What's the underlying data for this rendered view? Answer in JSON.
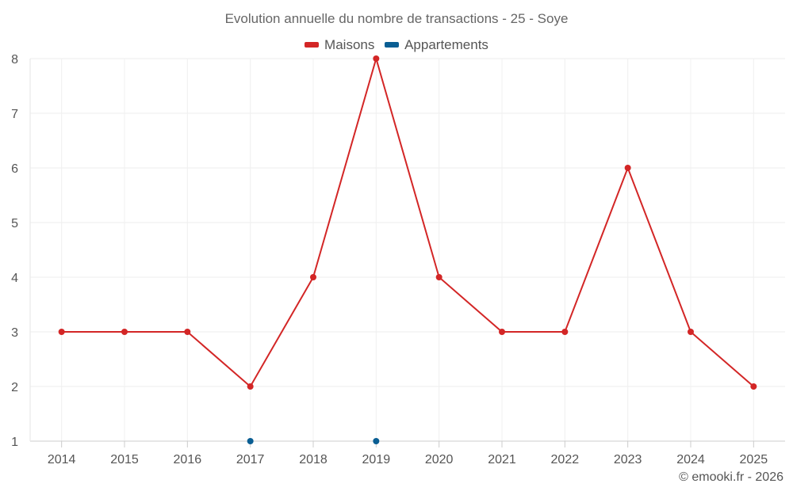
{
  "chart_data": {
    "type": "line",
    "title": "Evolution annuelle du nombre de transactions - 25 - Soye",
    "categories": [
      "2014",
      "2015",
      "2016",
      "2017",
      "2018",
      "2019",
      "2020",
      "2021",
      "2022",
      "2023",
      "2024",
      "2025"
    ],
    "series": [
      {
        "name": "Maisons",
        "color": "#d32626",
        "values": [
          3,
          3,
          3,
          2,
          4,
          8,
          4,
          3,
          3,
          6,
          3,
          2
        ]
      },
      {
        "name": "Appartements",
        "color": "#0a5e93",
        "values": [
          null,
          null,
          null,
          1,
          null,
          1,
          null,
          null,
          null,
          null,
          null,
          null
        ]
      }
    ],
    "ylim": [
      1,
      8
    ],
    "yticks": [
      1,
      2,
      3,
      4,
      5,
      6,
      7,
      8
    ],
    "xlabel": "",
    "ylabel": "",
    "grid": true,
    "legend": "top-center"
  },
  "footer": "© emooki.fr - 2026"
}
